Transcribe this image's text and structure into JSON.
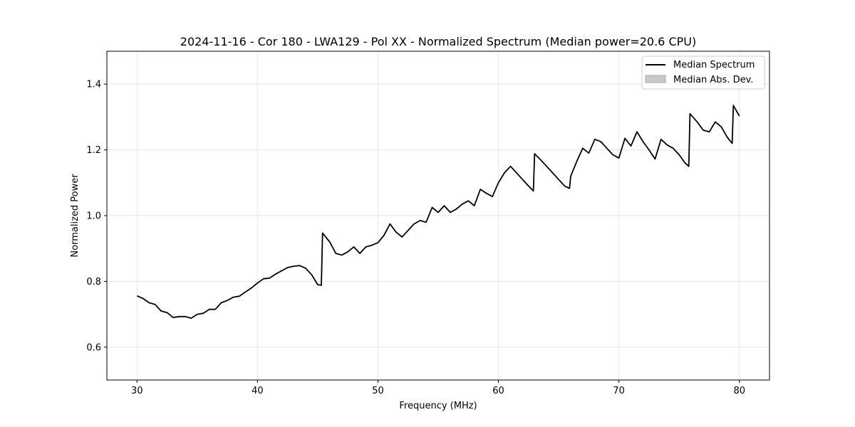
{
  "chart_data": {
    "type": "line",
    "title": "2024-11-16 - Cor 180 - LWA129 - Pol XX - Normalized Spectrum (Median power=20.6 CPU)",
    "xlabel": "Frequency (MHz)",
    "ylabel": "Normalized Power",
    "xlim": [
      27.5,
      82.5
    ],
    "ylim": [
      0.5,
      1.5
    ],
    "xticks": [
      30,
      40,
      50,
      60,
      70,
      80
    ],
    "xtick_labels": [
      "30",
      "40",
      "50",
      "60",
      "70",
      "80"
    ],
    "yticks": [
      0.6,
      0.8,
      1.0,
      1.2,
      1.4
    ],
    "ytick_labels": [
      "0.6",
      "0.8",
      "1.0",
      "1.2",
      "1.4"
    ],
    "grid": true,
    "legend_position": "top-right",
    "legend": [
      {
        "label": "Median Spectrum",
        "kind": "line",
        "color": "#000000"
      },
      {
        "label": "Median Abs. Dev.",
        "kind": "patch",
        "color": "#c8c8c8"
      }
    ],
    "series": [
      {
        "name": "Median Spectrum",
        "color": "#000000",
        "x": [
          30.0,
          30.5,
          31.0,
          31.5,
          32.0,
          32.5,
          33.0,
          33.5,
          34.0,
          34.5,
          35.0,
          35.5,
          36.0,
          36.5,
          37.0,
          37.5,
          38.0,
          38.5,
          39.0,
          39.5,
          40.0,
          40.5,
          41.0,
          41.5,
          42.0,
          42.5,
          43.0,
          43.5,
          44.0,
          44.5,
          45.0,
          45.3,
          45.4,
          46.0,
          46.5,
          47.0,
          47.5,
          48.0,
          48.5,
          49.0,
          49.5,
          50.0,
          50.5,
          51.0,
          51.5,
          52.0,
          52.5,
          53.0,
          53.5,
          54.0,
          54.5,
          55.0,
          55.5,
          56.0,
          56.5,
          57.0,
          57.5,
          58.0,
          58.5,
          59.0,
          59.5,
          60.0,
          60.5,
          61.0,
          61.5,
          62.0,
          62.5,
          62.9,
          63.0,
          63.5,
          64.0,
          64.5,
          65.0,
          65.5,
          65.9,
          66.0,
          66.5,
          67.0,
          67.5,
          68.0,
          68.5,
          69.0,
          69.5,
          70.0,
          70.5,
          71.0,
          71.5,
          72.0,
          72.5,
          73.0,
          73.5,
          74.0,
          74.5,
          75.0,
          75.5,
          75.8,
          75.9,
          76.5,
          77.0,
          77.5,
          78.0,
          78.5,
          79.0,
          79.4,
          79.5,
          80.0
        ],
        "values": [
          0.756,
          0.748,
          0.735,
          0.73,
          0.71,
          0.705,
          0.69,
          0.693,
          0.693,
          0.688,
          0.7,
          0.703,
          0.715,
          0.715,
          0.735,
          0.742,
          0.752,
          0.755,
          0.768,
          0.78,
          0.795,
          0.808,
          0.81,
          0.822,
          0.832,
          0.842,
          0.846,
          0.848,
          0.84,
          0.82,
          0.79,
          0.788,
          0.947,
          0.92,
          0.885,
          0.88,
          0.89,
          0.905,
          0.885,
          0.905,
          0.91,
          0.918,
          0.94,
          0.975,
          0.95,
          0.935,
          0.955,
          0.975,
          0.985,
          0.98,
          1.025,
          1.01,
          1.03,
          1.01,
          1.02,
          1.035,
          1.045,
          1.03,
          1.08,
          1.068,
          1.058,
          1.1,
          1.13,
          1.15,
          1.13,
          1.11,
          1.09,
          1.075,
          1.188,
          1.17,
          1.15,
          1.13,
          1.11,
          1.09,
          1.083,
          1.12,
          1.165,
          1.205,
          1.19,
          1.232,
          1.225,
          1.205,
          1.185,
          1.175,
          1.235,
          1.212,
          1.255,
          1.225,
          1.2,
          1.172,
          1.232,
          1.215,
          1.205,
          1.185,
          1.16,
          1.15,
          1.31,
          1.285,
          1.26,
          1.255,
          1.285,
          1.27,
          1.238,
          1.22,
          1.335,
          1.303
        ]
      }
    ]
  }
}
